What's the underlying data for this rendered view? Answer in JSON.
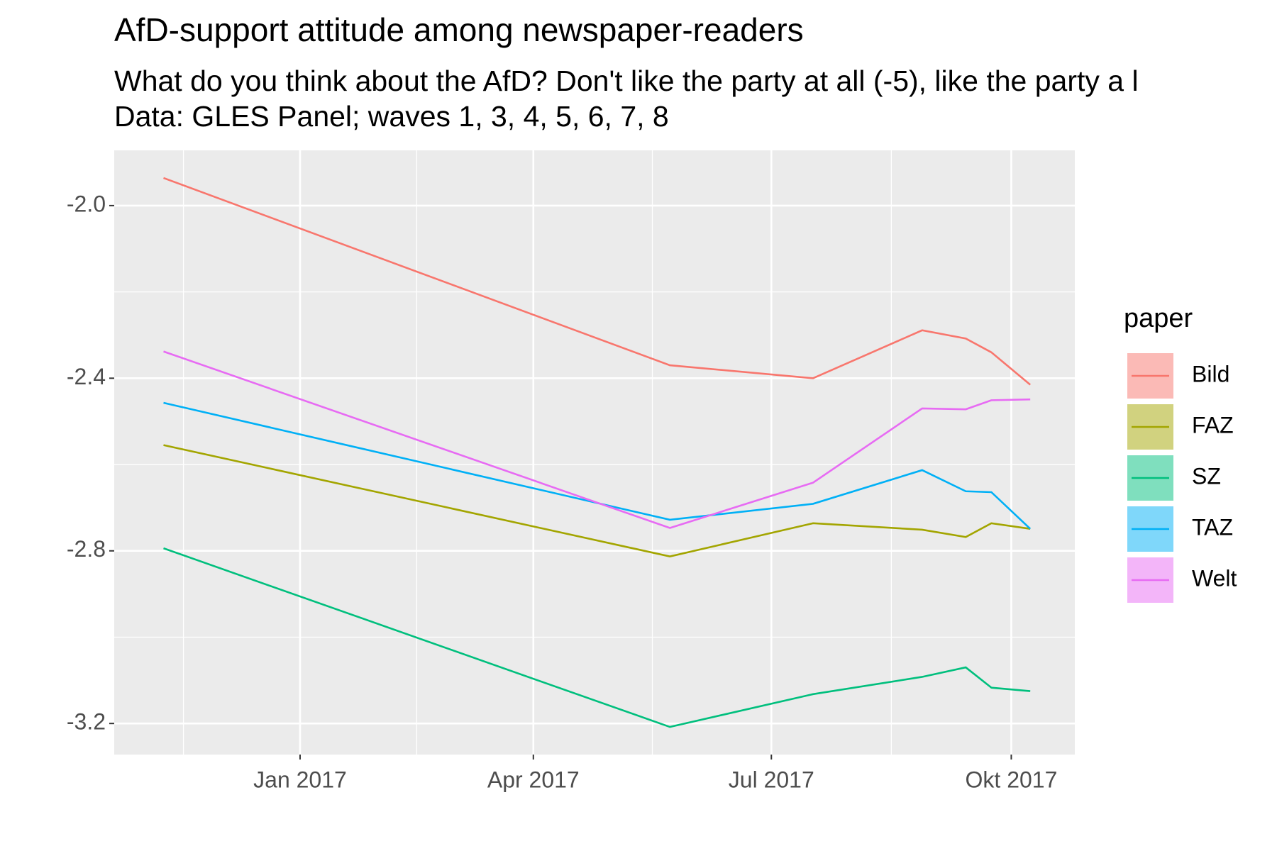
{
  "chart_data": {
    "type": "line",
    "title": "AfD-support attitude among newspaper-readers",
    "subtitle": [
      "What do you think about the AfD? Don't like the party at all (-5), like the party a l",
      "Data: GLES Panel; waves 1, 3, 4, 5, 6, 7, 8"
    ],
    "legend_title": "paper",
    "x": [
      2016.856,
      2017.39,
      2017.541,
      2017.656,
      2017.702,
      2017.729,
      2017.77
    ],
    "xlim": [
      2016.804,
      2017.817
    ],
    "xticks": [
      {
        "value": 2017.0,
        "label": "Jan 2017"
      },
      {
        "value": 2017.246,
        "label": "Apr 2017"
      },
      {
        "value": 2017.497,
        "label": "Jul 2017"
      },
      {
        "value": 2017.75,
        "label": "Okt 2017"
      }
    ],
    "ylim": [
      -3.272,
      -1.872
    ],
    "yticks": [
      {
        "value": -2.0,
        "label": "-2.0"
      },
      -2.4,
      -2.8,
      -3.2
    ],
    "grid": true,
    "legend": "right",
    "series": [
      {
        "name": "Bild",
        "color": "#F8766D",
        "values": [
          -1.936,
          -2.37,
          -2.4,
          -2.289,
          -2.308,
          -2.34,
          -2.415
        ]
      },
      {
        "name": "FAZ",
        "color": "#A3A500",
        "values": [
          -2.555,
          -2.813,
          -2.736,
          -2.751,
          -2.768,
          -2.736,
          -2.749
        ]
      },
      {
        "name": "SZ",
        "color": "#00BF7D",
        "values": [
          -2.794,
          -3.208,
          -3.132,
          -3.092,
          -3.07,
          -3.117,
          -3.125
        ]
      },
      {
        "name": "TAZ",
        "color": "#00B0F6",
        "values": [
          -2.457,
          -2.728,
          -2.691,
          -2.613,
          -2.662,
          -2.664,
          -2.749
        ]
      },
      {
        "name": "Welt",
        "color": "#E76BF3",
        "values": [
          -2.338,
          -2.747,
          -2.642,
          -2.47,
          -2.472,
          -2.451,
          -2.449
        ]
      }
    ]
  }
}
